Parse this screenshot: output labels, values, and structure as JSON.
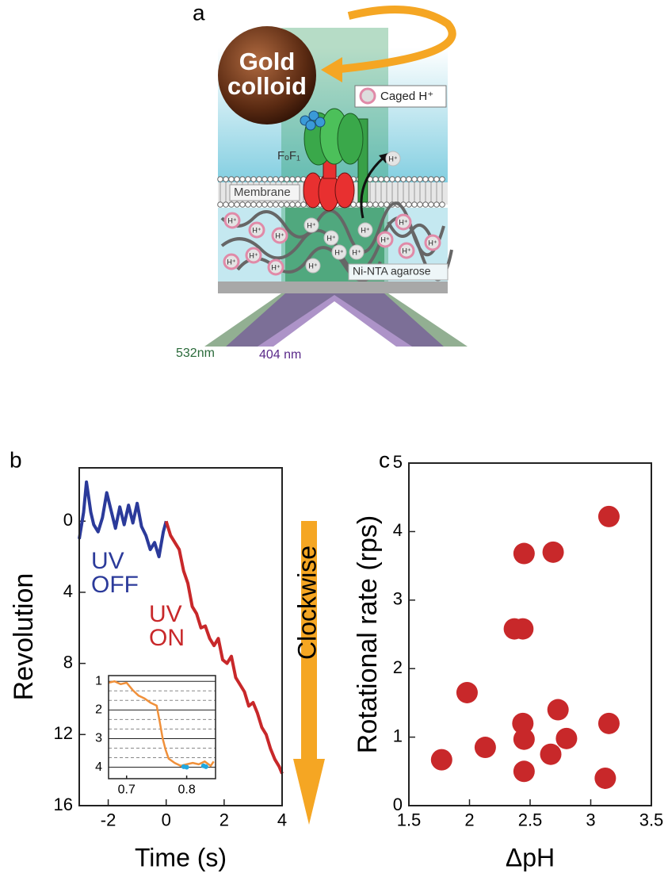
{
  "diagram": {
    "panel_label": "a",
    "colloid_label": "Gold colloid",
    "caged_label": "Caged H⁺",
    "proton": "H⁺",
    "enzyme_label": "FₒF₁",
    "membrane_label": "Membrane",
    "agarose_label": "Ni-NTA agarose",
    "laser_green": "532nm",
    "laser_violet": "404 nm"
  },
  "chart_data": [
    {
      "type": "line",
      "panel_label": "b",
      "x_label": "Time (s)",
      "y_label": "Revolution",
      "annotation": "Clockwise",
      "xlim": [
        -3,
        4
      ],
      "xticks": [
        -2,
        0,
        2,
        4
      ],
      "ylim": [
        16,
        -3
      ],
      "yticks": [
        0,
        4,
        8,
        12,
        16
      ],
      "series": [
        {
          "name": "UV OFF",
          "color": "#2b3a9a",
          "x": [
            -3,
            -2.85,
            -2.75,
            -2.6,
            -2.5,
            -2.35,
            -2.2,
            -2.05,
            -1.9,
            -1.75,
            -1.6,
            -1.45,
            -1.3,
            -1.15,
            -1,
            -0.85,
            -0.7,
            -0.55,
            -0.4,
            -0.25,
            -0.1,
            0
          ],
          "values": [
            1,
            -0.5,
            -2.2,
            -0.5,
            0.2,
            0.6,
            -0.2,
            -1.6,
            -0.6,
            0.4,
            -0.8,
            0.2,
            -0.9,
            0.1,
            -1,
            0.3,
            0.8,
            1.6,
            1.2,
            2,
            0.6,
            0
          ]
        },
        {
          "name": "UV ON",
          "color": "#c8282a",
          "x": [
            0,
            0.15,
            0.3,
            0.45,
            0.6,
            0.75,
            0.9,
            1.05,
            1.2,
            1.35,
            1.5,
            1.65,
            1.8,
            1.95,
            2.1,
            2.25,
            2.4,
            2.55,
            2.7,
            2.85,
            3,
            3.15,
            3.3,
            3.45,
            3.6,
            3.75,
            3.9,
            4
          ],
          "values": [
            0,
            0.8,
            1.2,
            1.6,
            2.8,
            3.5,
            4.8,
            5.2,
            6,
            5.9,
            6.6,
            7,
            6.6,
            7.8,
            8,
            7.6,
            8.8,
            9.2,
            9.6,
            10.4,
            10.2,
            10.8,
            11.6,
            12,
            12.8,
            13.4,
            13.8,
            14.2
          ]
        }
      ]
    },
    {
      "type": "line",
      "xlim": [
        0.67,
        0.848
      ],
      "xticks": [
        0.7,
        0.8
      ],
      "ylim": [
        4.4,
        0.8
      ],
      "yticks": [
        1,
        2,
        3,
        4
      ],
      "yminorticks": [
        1.333,
        1.667,
        2.333,
        2.667,
        3.333,
        3.667
      ],
      "series": [
        {
          "color": "#f0903a",
          "x": [
            0.67,
            0.68,
            0.69,
            0.7,
            0.71,
            0.72,
            0.73,
            0.74,
            0.75,
            0.755,
            0.76,
            0.765,
            0.77,
            0.78,
            0.79,
            0.8,
            0.81,
            0.82,
            0.83,
            0.84,
            0.845
          ],
          "values": [
            1.05,
            1.0,
            1.1,
            1.05,
            1.3,
            1.5,
            1.6,
            1.75,
            1.85,
            2.4,
            3.0,
            3.4,
            3.7,
            3.85,
            3.95,
            3.9,
            3.85,
            3.9,
            3.8,
            3.95,
            3.8
          ]
        },
        {
          "color": "#22a8e0",
          "style": "points",
          "x": [
            0.795,
            0.8,
            0.828,
            0.832
          ],
          "values": [
            3.98,
            4.0,
            3.95,
            3.98
          ]
        }
      ]
    },
    {
      "type": "scatter",
      "panel_label": "c",
      "x_label": "ΔpH",
      "y_label": "Rotational rate (rps)",
      "color": "#c8282a",
      "xlim": [
        1.5,
        3.5
      ],
      "xticks": [
        1.5,
        2,
        2.5,
        3,
        3.5
      ],
      "ylim": [
        0,
        5
      ],
      "yticks": [
        0,
        1,
        2,
        3,
        4,
        5
      ],
      "x": [
        1.77,
        1.98,
        2.13,
        2.37,
        2.44,
        2.45,
        2.69,
        2.44,
        2.45,
        2.45,
        2.73,
        2.67,
        2.8,
        3.15,
        3.15,
        3.12
      ],
      "values": [
        0.67,
        1.65,
        0.85,
        2.58,
        2.58,
        3.68,
        3.7,
        1.2,
        0.97,
        0.5,
        1.4,
        0.75,
        0.98,
        4.22,
        1.2,
        0.4
      ]
    }
  ]
}
